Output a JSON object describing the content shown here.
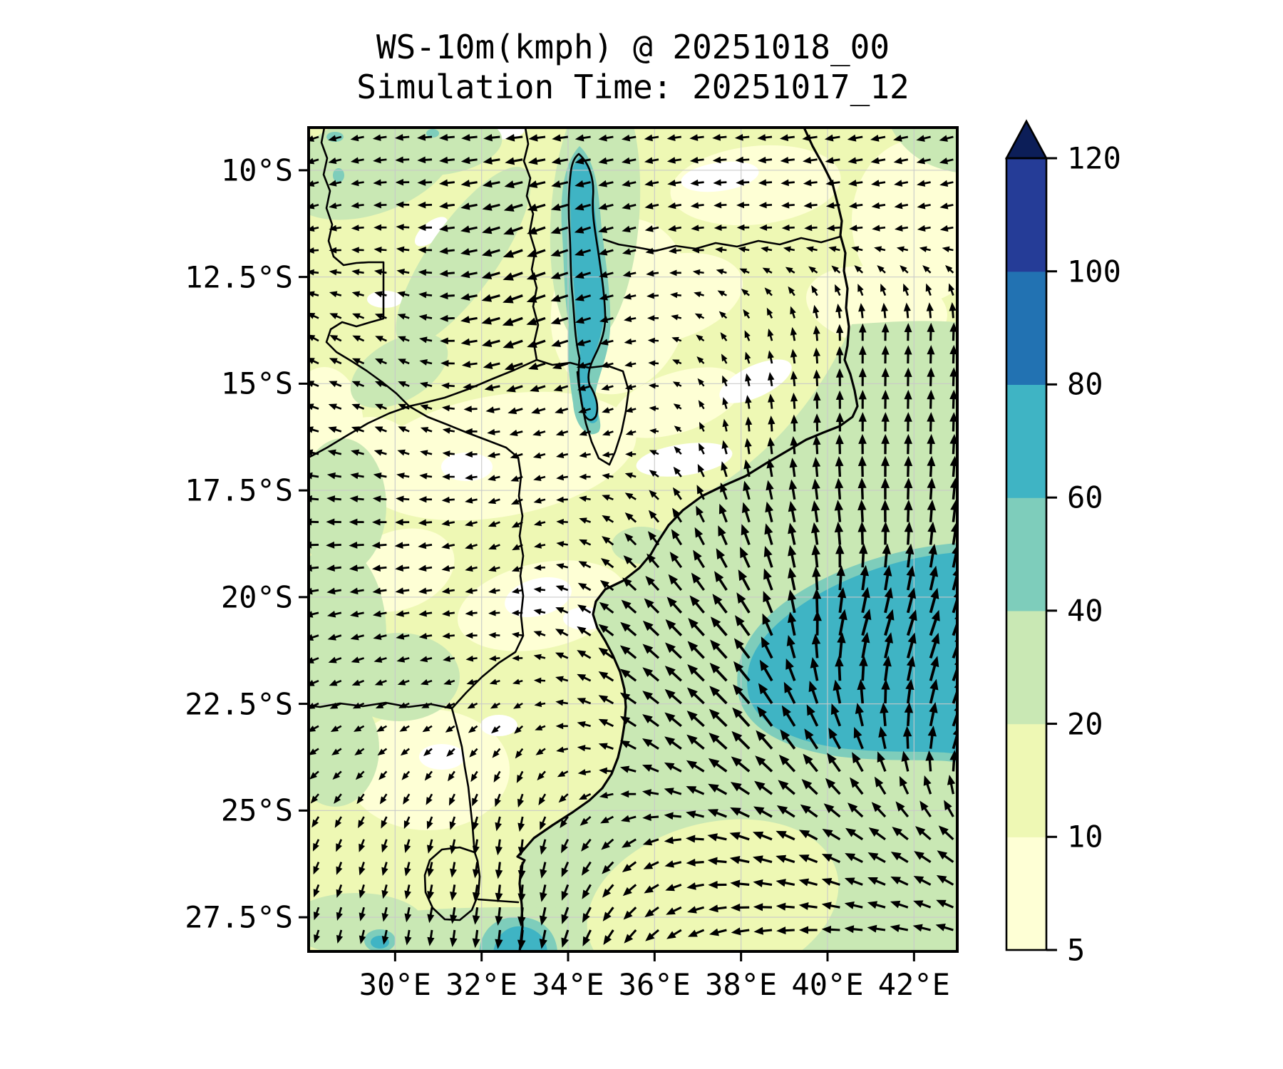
{
  "title": {
    "line1": "WS-10m(kmph) @ 20251018_00",
    "line2": "Simulation Time: 20251017_12"
  },
  "axes": {
    "lon_min": 28.0,
    "lon_max": 43.0,
    "lat_min": 9.0,
    "lat_max": 28.3,
    "x_ticks": [
      {
        "value": 30,
        "label": "30°E"
      },
      {
        "value": 32,
        "label": "32°E"
      },
      {
        "value": 34,
        "label": "34°E"
      },
      {
        "value": 36,
        "label": "36°E"
      },
      {
        "value": 38,
        "label": "38°E"
      },
      {
        "value": 40,
        "label": "40°E"
      },
      {
        "value": 42,
        "label": "42°E"
      }
    ],
    "y_ticks": [
      {
        "value": 10,
        "label": "10°S"
      },
      {
        "value": 12.5,
        "label": "12.5°S"
      },
      {
        "value": 15,
        "label": "15°S"
      },
      {
        "value": 17.5,
        "label": "17.5°S"
      },
      {
        "value": 20,
        "label": "20°S"
      },
      {
        "value": 22.5,
        "label": "22.5°S"
      },
      {
        "value": 25,
        "label": "25°S"
      },
      {
        "value": 27.5,
        "label": "27.5°S"
      }
    ],
    "grid": true
  },
  "colorbar": {
    "levels": [
      5,
      10,
      20,
      40,
      60,
      80,
      100,
      120
    ],
    "tick_labels": [
      "5",
      "10",
      "20",
      "40",
      "60",
      "80",
      "100",
      "120"
    ],
    "colors": [
      "#feffd5",
      "#eef8b4",
      "#c9e8b4",
      "#7ecdbb",
      "#3fb4c4",
      "#2272b2",
      "#253c97"
    ],
    "extend": "max",
    "extend_color": "#0c1e58",
    "below_min_color": "#ffffff"
  },
  "chart_data": {
    "type": "heatmap",
    "subtype": "filled-contour map with quiver wind-vector overlay",
    "variable": "WS-10m",
    "units": "kmph",
    "valid_time": "20251018_00",
    "simulation_time": "20251017_12",
    "region": "Mozambique and surrounding southeastern Africa, 28-43°E, 9-28.3°S",
    "levels_kmph": [
      5,
      10,
      20,
      40,
      60,
      80,
      100,
      120
    ],
    "palette_colors": [
      "#feffd5",
      "#eef8b4",
      "#c9e8b4",
      "#7ecdbb",
      "#3fb4c4",
      "#2272b2",
      "#253c97"
    ],
    "map_features": [
      "Indian Ocean coastline",
      "Lake Malawi",
      "Tanzania-Mozambique border",
      "Malawi borders",
      "Zambia-Mozambique border",
      "Zimbabwe-Mozambique border",
      "Limpopo border",
      "South Africa-Mozambique border",
      "Eswatini outline"
    ],
    "high_wind_areas": [
      {
        "where": "offshore Indian Ocean 39-43°E, 20-23.5°S",
        "speed_kmph": "60-80"
      },
      {
        "where": "Lake Malawi surface streak 34-35°E, 9.5-14.5°S",
        "speed_kmph": "60-80"
      },
      {
        "where": "coastal patch near 33.5-34.5°E at map south edge",
        "speed_kmph": "60-80"
      }
    ],
    "general_pattern": "20-40 kmph southerly-to-southeasterly flow over the Mozambique Channel turning northward along the coast; light 5-20 kmph variable winds inland with easterlies across the north",
    "wind_field": {
      "note": "coarse control grid read from quiver arrows; direction is degrees the arrow points toward, 0=east, 90=north; magnitude 0-1 relative",
      "lons": [
        28,
        30.5,
        33,
        35.5,
        38,
        40.5,
        43
      ],
      "lats": [
        9,
        11.4,
        13.8,
        16.2,
        18.6,
        21,
        23.4,
        25.8,
        28.2
      ],
      "direction_deg_toward": [
        [
          200,
          185,
          185,
          190,
          185,
          190,
          195
        ],
        [
          195,
          175,
          200,
          195,
          180,
          185,
          190
        ],
        [
          150,
          160,
          200,
          190,
          120,
          90,
          88
        ],
        [
          165,
          155,
          195,
          200,
          95,
          90,
          88
        ],
        [
          180,
          185,
          210,
          135,
          110,
          95,
          82
        ],
        [
          200,
          190,
          170,
          140,
          130,
          75,
          70
        ],
        [
          210,
          215,
          230,
          150,
          135,
          115,
          70
        ],
        [
          245,
          255,
          265,
          215,
          165,
          150,
          140
        ],
        [
          252,
          262,
          264,
          232,
          195,
          182,
          168
        ]
      ],
      "magnitude": [
        [
          0.4,
          0.45,
          0.55,
          0.45,
          0.45,
          0.5,
          0.45
        ],
        [
          0.35,
          0.4,
          0.7,
          0.45,
          0.35,
          0.4,
          0.4
        ],
        [
          0.4,
          0.35,
          0.75,
          0.35,
          0.3,
          0.55,
          0.6
        ],
        [
          0.45,
          0.35,
          0.4,
          0.3,
          0.45,
          0.65,
          0.65
        ],
        [
          0.5,
          0.45,
          0.35,
          0.5,
          0.75,
          0.8,
          0.8
        ],
        [
          0.45,
          0.4,
          0.3,
          0.7,
          0.9,
          1.0,
          0.95
        ],
        [
          0.35,
          0.3,
          0.35,
          0.6,
          0.9,
          0.85,
          0.9
        ],
        [
          0.4,
          0.45,
          0.55,
          0.55,
          0.7,
          0.7,
          0.7
        ],
        [
          0.4,
          0.5,
          0.7,
          0.6,
          0.6,
          0.6,
          0.6
        ]
      ]
    }
  }
}
